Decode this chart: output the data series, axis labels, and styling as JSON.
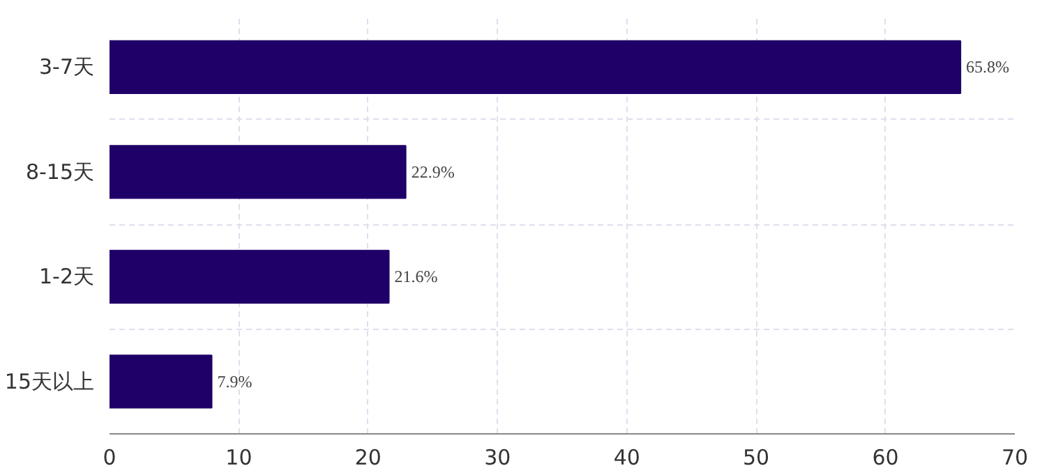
{
  "chart_data": {
    "type": "bar",
    "orientation": "horizontal",
    "categories": [
      "3-7天",
      "8-15天",
      "1-2天",
      "15天以上"
    ],
    "values": [
      65.8,
      22.9,
      21.6,
      7.9
    ],
    "value_labels": [
      "65.8%",
      "22.9%",
      "21.6%",
      "7.9%"
    ],
    "color": "#1f0068",
    "xlim": [
      0,
      70
    ],
    "xticks": [
      0,
      10,
      20,
      30,
      40,
      50,
      60,
      70
    ],
    "grid": true
  }
}
